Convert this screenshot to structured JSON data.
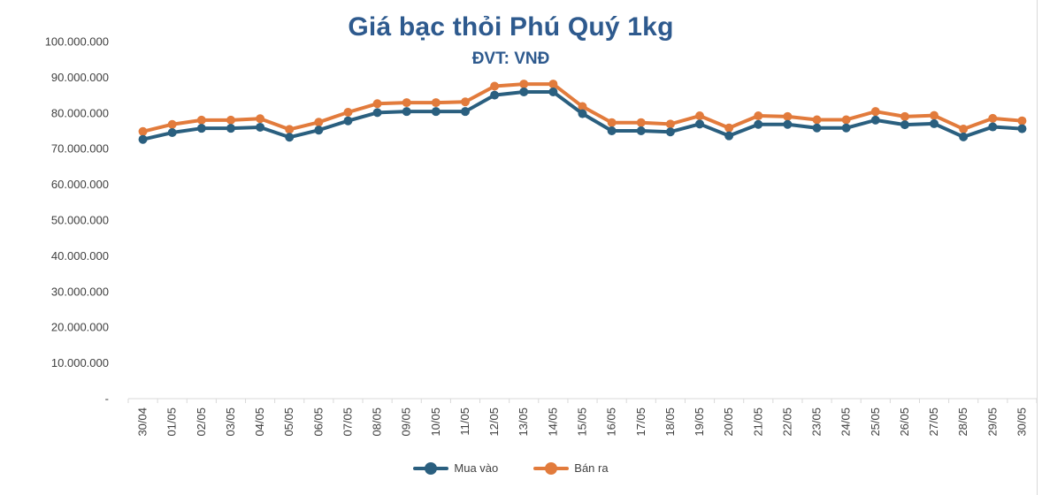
{
  "chart_data": {
    "type": "line",
    "title": "Giá bạc thỏi Phú Quý 1kg",
    "subtitle": "ĐVT: VNĐ",
    "categories": [
      "30/04",
      "01/05",
      "02/05",
      "03/05",
      "04/05",
      "05/05",
      "06/05",
      "07/05",
      "08/05",
      "09/05",
      "10/05",
      "11/05",
      "12/05",
      "13/05",
      "14/05",
      "15/05",
      "16/05",
      "17/05",
      "18/05",
      "19/05",
      "20/05",
      "21/05",
      "22/05",
      "23/05",
      "24/05",
      "25/05",
      "26/05",
      "27/05",
      "28/05",
      "29/05",
      "30/05"
    ],
    "y_ticks": [
      "-",
      "10.000.000",
      "20.000.000",
      "30.000.000",
      "40.000.000",
      "50.000.000",
      "60.000.000",
      "70.000.000",
      "80.000.000",
      "90.000.000",
      "100.000.000"
    ],
    "ylim": [
      0,
      100000000
    ],
    "grid": false,
    "legend_position": "bottom",
    "series": [
      {
        "name": "Mua vào",
        "color": "#2A5F7F",
        "values": [
          72600000,
          74500000,
          75700000,
          75700000,
          76000000,
          73200000,
          75200000,
          77800000,
          80100000,
          80400000,
          80400000,
          80400000,
          85000000,
          85900000,
          85900000,
          79800000,
          75000000,
          75000000,
          74700000,
          76900000,
          73600000,
          76800000,
          76800000,
          75800000,
          75800000,
          78000000,
          76700000,
          77000000,
          73300000,
          76100000,
          75600000
        ]
      },
      {
        "name": "Bán ra",
        "color": "#E27B3C",
        "values": [
          74800000,
          76800000,
          78000000,
          78000000,
          78400000,
          75400000,
          77400000,
          80200000,
          82600000,
          82900000,
          82900000,
          83100000,
          87500000,
          88100000,
          88100000,
          81800000,
          77300000,
          77300000,
          76900000,
          79200000,
          75800000,
          79200000,
          79000000,
          78100000,
          78100000,
          80400000,
          79000000,
          79300000,
          75500000,
          78500000,
          77800000
        ]
      }
    ]
  }
}
